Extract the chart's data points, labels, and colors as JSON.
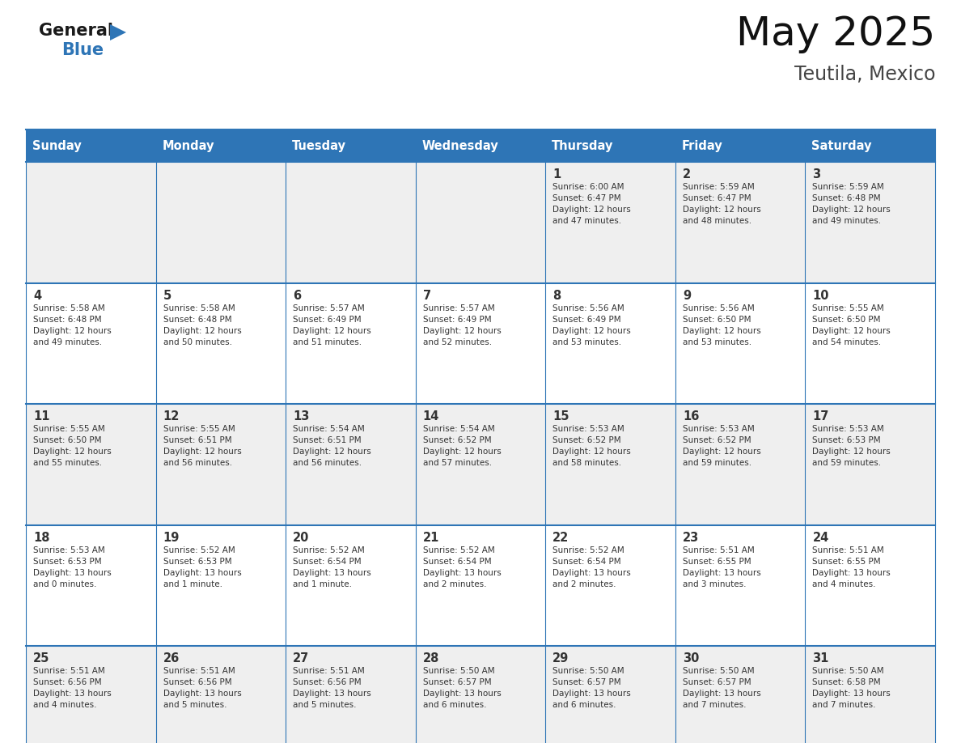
{
  "title": "May 2025",
  "subtitle": "Teutila, Mexico",
  "header_bg": "#2E75B6",
  "header_text_color": "#FFFFFF",
  "day_names": [
    "Sunday",
    "Monday",
    "Tuesday",
    "Wednesday",
    "Thursday",
    "Friday",
    "Saturday"
  ],
  "cell_bg_odd": "#EFEFEF",
  "cell_bg_even": "#FFFFFF",
  "cell_border": "#2E75B6",
  "divider_color": "#2E75B6",
  "text_color": "#333333",
  "logo_general_color": "#1a1a1a",
  "logo_blue_color": "#2E75B6",
  "calendar": [
    [
      {
        "day": "",
        "info": ""
      },
      {
        "day": "",
        "info": ""
      },
      {
        "day": "",
        "info": ""
      },
      {
        "day": "",
        "info": ""
      },
      {
        "day": "1",
        "info": "Sunrise: 6:00 AM\nSunset: 6:47 PM\nDaylight: 12 hours\nand 47 minutes."
      },
      {
        "day": "2",
        "info": "Sunrise: 5:59 AM\nSunset: 6:47 PM\nDaylight: 12 hours\nand 48 minutes."
      },
      {
        "day": "3",
        "info": "Sunrise: 5:59 AM\nSunset: 6:48 PM\nDaylight: 12 hours\nand 49 minutes."
      }
    ],
    [
      {
        "day": "4",
        "info": "Sunrise: 5:58 AM\nSunset: 6:48 PM\nDaylight: 12 hours\nand 49 minutes."
      },
      {
        "day": "5",
        "info": "Sunrise: 5:58 AM\nSunset: 6:48 PM\nDaylight: 12 hours\nand 50 minutes."
      },
      {
        "day": "6",
        "info": "Sunrise: 5:57 AM\nSunset: 6:49 PM\nDaylight: 12 hours\nand 51 minutes."
      },
      {
        "day": "7",
        "info": "Sunrise: 5:57 AM\nSunset: 6:49 PM\nDaylight: 12 hours\nand 52 minutes."
      },
      {
        "day": "8",
        "info": "Sunrise: 5:56 AM\nSunset: 6:49 PM\nDaylight: 12 hours\nand 53 minutes."
      },
      {
        "day": "9",
        "info": "Sunrise: 5:56 AM\nSunset: 6:50 PM\nDaylight: 12 hours\nand 53 minutes."
      },
      {
        "day": "10",
        "info": "Sunrise: 5:55 AM\nSunset: 6:50 PM\nDaylight: 12 hours\nand 54 minutes."
      }
    ],
    [
      {
        "day": "11",
        "info": "Sunrise: 5:55 AM\nSunset: 6:50 PM\nDaylight: 12 hours\nand 55 minutes."
      },
      {
        "day": "12",
        "info": "Sunrise: 5:55 AM\nSunset: 6:51 PM\nDaylight: 12 hours\nand 56 minutes."
      },
      {
        "day": "13",
        "info": "Sunrise: 5:54 AM\nSunset: 6:51 PM\nDaylight: 12 hours\nand 56 minutes."
      },
      {
        "day": "14",
        "info": "Sunrise: 5:54 AM\nSunset: 6:52 PM\nDaylight: 12 hours\nand 57 minutes."
      },
      {
        "day": "15",
        "info": "Sunrise: 5:53 AM\nSunset: 6:52 PM\nDaylight: 12 hours\nand 58 minutes."
      },
      {
        "day": "16",
        "info": "Sunrise: 5:53 AM\nSunset: 6:52 PM\nDaylight: 12 hours\nand 59 minutes."
      },
      {
        "day": "17",
        "info": "Sunrise: 5:53 AM\nSunset: 6:53 PM\nDaylight: 12 hours\nand 59 minutes."
      }
    ],
    [
      {
        "day": "18",
        "info": "Sunrise: 5:53 AM\nSunset: 6:53 PM\nDaylight: 13 hours\nand 0 minutes."
      },
      {
        "day": "19",
        "info": "Sunrise: 5:52 AM\nSunset: 6:53 PM\nDaylight: 13 hours\nand 1 minute."
      },
      {
        "day": "20",
        "info": "Sunrise: 5:52 AM\nSunset: 6:54 PM\nDaylight: 13 hours\nand 1 minute."
      },
      {
        "day": "21",
        "info": "Sunrise: 5:52 AM\nSunset: 6:54 PM\nDaylight: 13 hours\nand 2 minutes."
      },
      {
        "day": "22",
        "info": "Sunrise: 5:52 AM\nSunset: 6:54 PM\nDaylight: 13 hours\nand 2 minutes."
      },
      {
        "day": "23",
        "info": "Sunrise: 5:51 AM\nSunset: 6:55 PM\nDaylight: 13 hours\nand 3 minutes."
      },
      {
        "day": "24",
        "info": "Sunrise: 5:51 AM\nSunset: 6:55 PM\nDaylight: 13 hours\nand 4 minutes."
      }
    ],
    [
      {
        "day": "25",
        "info": "Sunrise: 5:51 AM\nSunset: 6:56 PM\nDaylight: 13 hours\nand 4 minutes."
      },
      {
        "day": "26",
        "info": "Sunrise: 5:51 AM\nSunset: 6:56 PM\nDaylight: 13 hours\nand 5 minutes."
      },
      {
        "day": "27",
        "info": "Sunrise: 5:51 AM\nSunset: 6:56 PM\nDaylight: 13 hours\nand 5 minutes."
      },
      {
        "day": "28",
        "info": "Sunrise: 5:50 AM\nSunset: 6:57 PM\nDaylight: 13 hours\nand 6 minutes."
      },
      {
        "day": "29",
        "info": "Sunrise: 5:50 AM\nSunset: 6:57 PM\nDaylight: 13 hours\nand 6 minutes."
      },
      {
        "day": "30",
        "info": "Sunrise: 5:50 AM\nSunset: 6:57 PM\nDaylight: 13 hours\nand 7 minutes."
      },
      {
        "day": "31",
        "info": "Sunrise: 5:50 AM\nSunset: 6:58 PM\nDaylight: 13 hours\nand 7 minutes."
      }
    ]
  ]
}
